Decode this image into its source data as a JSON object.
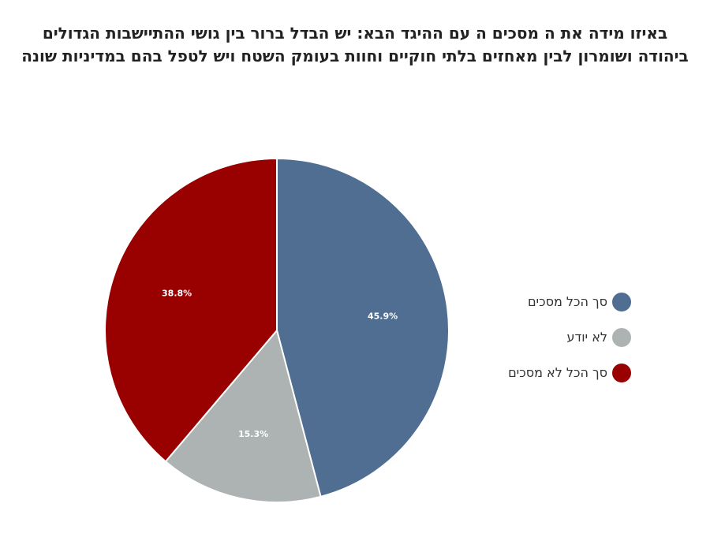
{
  "chart_data": {
    "type": "pie",
    "title": "באיזו מידה את ה מסכים ה עם ההיגד הבא: יש הבדל ברור בין גושי ההתיישבות הגדולים ביהודה ושומרון לבין מאחזים בלתי חוקיים וחוות בעומק השטח ויש לטפל בהם במדיניות שונה",
    "slices": [
      {
        "label": "סך הכל מסכים",
        "value": 45.9,
        "display": "45.9%",
        "color": "#4f6e91"
      },
      {
        "label": "לא יודע",
        "value": 15.3,
        "display": "15.3%",
        "color": "#adb2b2"
      },
      {
        "label": "סך הכל לא מסכים",
        "value": 38.8,
        "display": "38.8%",
        "color": "#990000"
      }
    ],
    "legend_position": "right",
    "start_angle": "12 o'clock",
    "direction": "clockwise"
  }
}
